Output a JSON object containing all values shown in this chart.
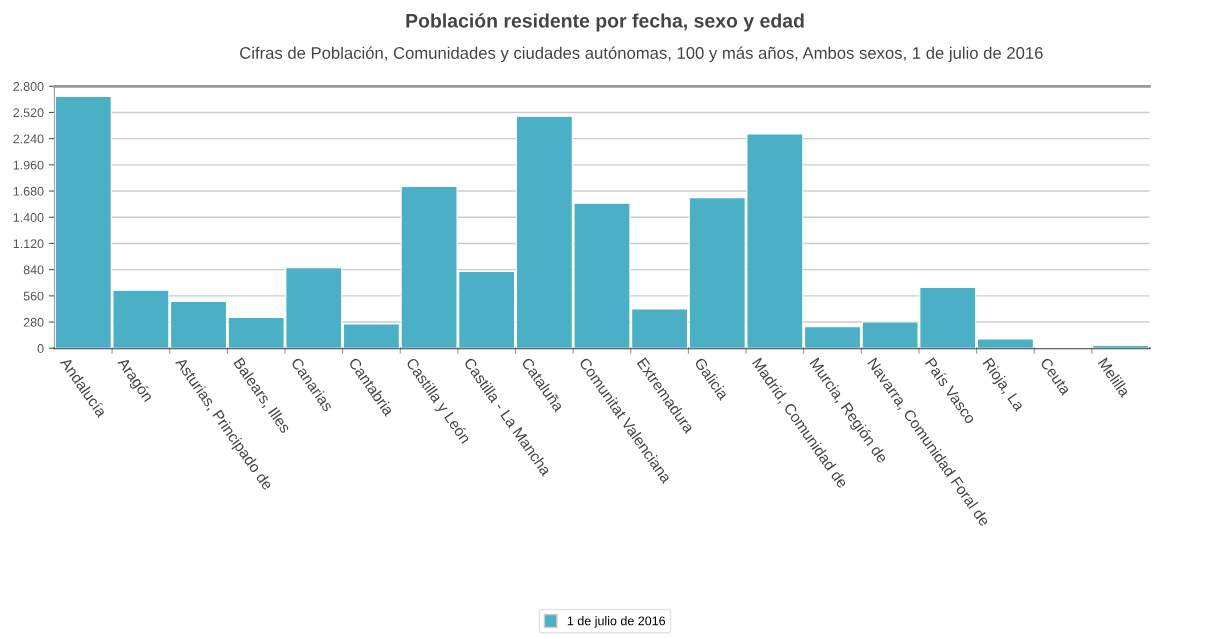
{
  "chart_data": {
    "type": "bar",
    "title": "Población residente por fecha, sexo y edad",
    "subtitle": "Cifras de Población, Comunidades y ciudades autónomas, 100 y más años, Ambos sexos, 1 de julio de 2016",
    "categories": [
      "Andalucía",
      "Aragón",
      "Asturias, Principado de",
      "Balears, Illes",
      "Canarias",
      "Cantabria",
      "Castilla y León",
      "Castilla - La Mancha",
      "Cataluña",
      "Comunitat Valenciana",
      "Extremadura",
      "Galicia",
      "Madrid, Comunidad de",
      "Murcia, Región de",
      "Navarra, Comunidad Foral de",
      "País Vasco",
      "Rioja, La",
      "Ceuta",
      "Melilla"
    ],
    "series": [
      {
        "name": "1 de julio de 2016",
        "color": "#4bafc5",
        "values": [
          2690,
          620,
          500,
          330,
          860,
          260,
          1730,
          820,
          2480,
          1550,
          420,
          1610,
          2290,
          230,
          280,
          650,
          100,
          10,
          30
        ]
      }
    ],
    "ylim": [
      0,
      2800
    ],
    "yticks": [
      0,
      {
        "value": 280,
        "label": "280"
      },
      {
        "value": 560,
        "label": "560"
      },
      {
        "value": 840,
        "label": "840"
      },
      {
        "value": 1120,
        "label": "1.120"
      },
      {
        "value": 1400,
        "label": "1.400"
      },
      {
        "value": 1680,
        "label": "1.680"
      },
      {
        "value": 1960,
        "label": "1.960"
      },
      {
        "value": 2240,
        "label": "2.240"
      },
      {
        "value": 2520,
        "label": "2.520"
      },
      {
        "value": 2800,
        "label": "2.800"
      }
    ],
    "grid": "y",
    "legend": "bottom"
  }
}
